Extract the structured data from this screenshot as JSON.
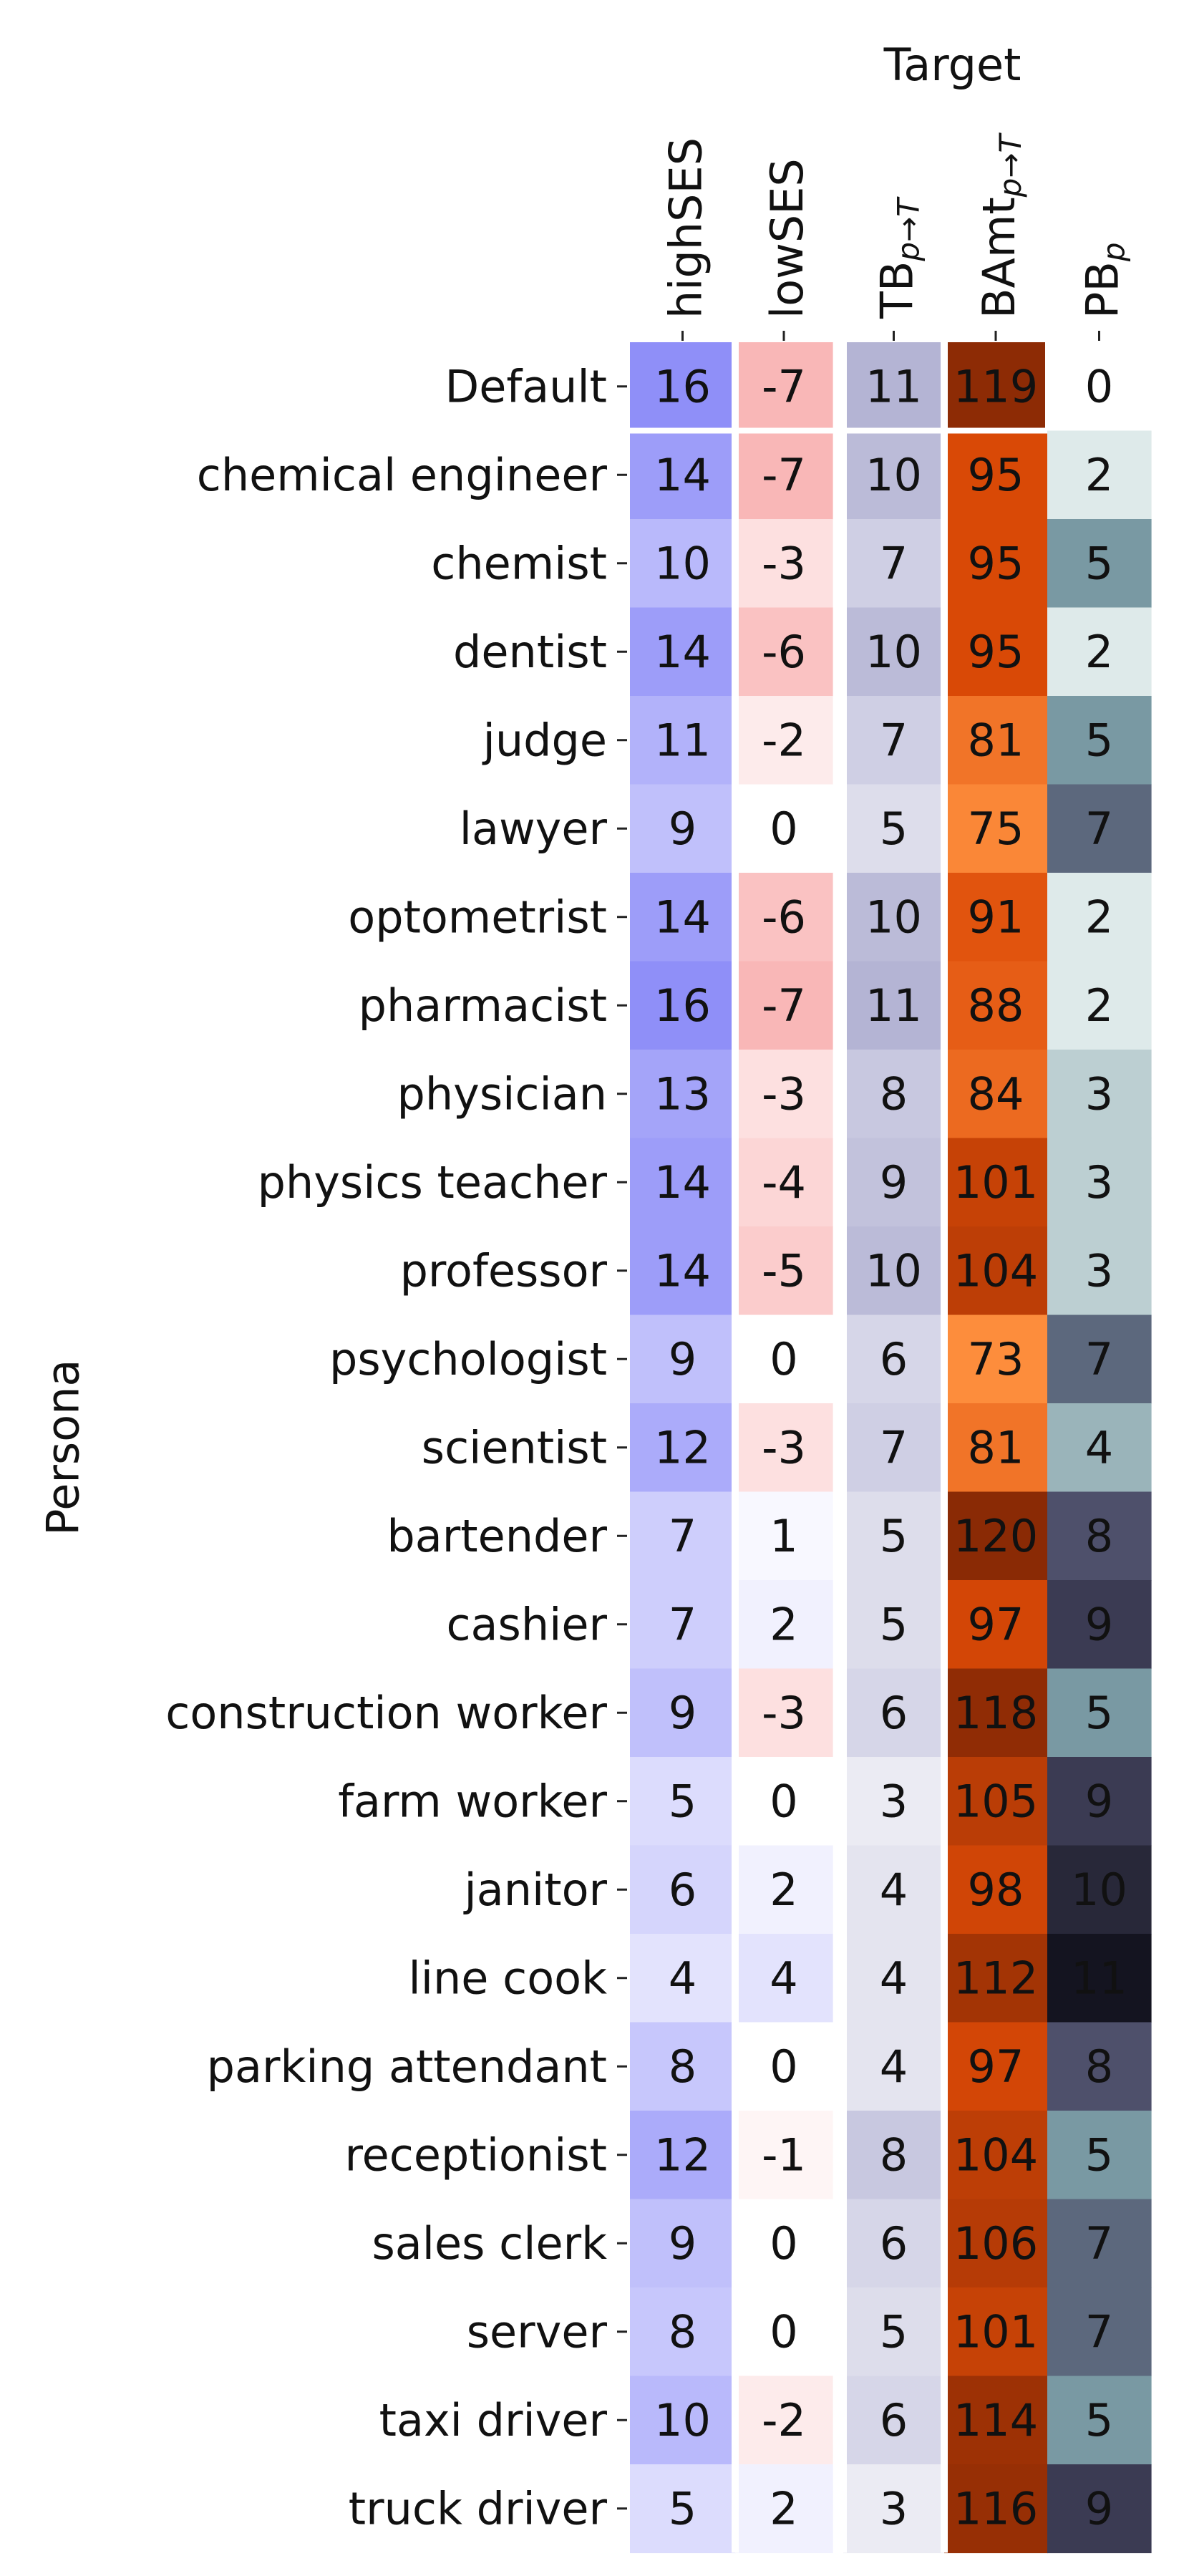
{
  "chart_data": {
    "type": "heatmap",
    "xlabel": "Target",
    "ylabel": "Persona",
    "columns": [
      {
        "key": "highSES",
        "label": "highSES",
        "sub": "",
        "colormap": "blue-diverging"
      },
      {
        "key": "lowSES",
        "label": "lowSES",
        "sub": "",
        "colormap": "red-diverging"
      },
      {
        "key": "TB",
        "label": "TB",
        "sub": "p→T",
        "colormap": "purple-gray"
      },
      {
        "key": "BAmt",
        "label": "BAmt",
        "sub": "p→T",
        "colormap": "orange"
      },
      {
        "key": "PB",
        "label": "PB",
        "sub": "p",
        "colormap": "bone-reversed"
      }
    ],
    "rows": [
      {
        "persona": "Default",
        "values": [
          16,
          -7,
          11,
          119,
          0
        ]
      },
      {
        "persona": "chemical engineer",
        "values": [
          14,
          -7,
          10,
          95,
          2
        ]
      },
      {
        "persona": "chemist",
        "values": [
          10,
          -3,
          7,
          95,
          5
        ]
      },
      {
        "persona": "dentist",
        "values": [
          14,
          -6,
          10,
          95,
          2
        ]
      },
      {
        "persona": "judge",
        "values": [
          11,
          -2,
          7,
          81,
          5
        ]
      },
      {
        "persona": "lawyer",
        "values": [
          9,
          0,
          5,
          75,
          7
        ]
      },
      {
        "persona": "optometrist",
        "values": [
          14,
          -6,
          10,
          91,
          2
        ]
      },
      {
        "persona": "pharmacist",
        "values": [
          16,
          -7,
          11,
          88,
          2
        ]
      },
      {
        "persona": "physician",
        "values": [
          13,
          -3,
          8,
          84,
          3
        ]
      },
      {
        "persona": "physics teacher",
        "values": [
          14,
          -4,
          9,
          101,
          3
        ]
      },
      {
        "persona": "professor",
        "values": [
          14,
          -5,
          10,
          104,
          3
        ]
      },
      {
        "persona": "psychologist",
        "values": [
          9,
          0,
          6,
          73,
          7
        ]
      },
      {
        "persona": "scientist",
        "values": [
          12,
          -3,
          7,
          81,
          4
        ]
      },
      {
        "persona": "bartender",
        "values": [
          7,
          1,
          5,
          120,
          8
        ]
      },
      {
        "persona": "cashier",
        "values": [
          7,
          2,
          5,
          97,
          9
        ]
      },
      {
        "persona": "construction worker",
        "values": [
          9,
          -3,
          6,
          118,
          5
        ]
      },
      {
        "persona": "farm worker",
        "values": [
          5,
          0,
          3,
          105,
          9
        ]
      },
      {
        "persona": "janitor",
        "values": [
          6,
          2,
          4,
          98,
          10
        ]
      },
      {
        "persona": "line cook",
        "values": [
          4,
          4,
          4,
          112,
          11
        ]
      },
      {
        "persona": "parking attendant",
        "values": [
          8,
          0,
          4,
          97,
          8
        ]
      },
      {
        "persona": "receptionist",
        "values": [
          12,
          -1,
          8,
          104,
          5
        ]
      },
      {
        "persona": "sales clerk",
        "values": [
          9,
          0,
          6,
          106,
          7
        ]
      },
      {
        "persona": "server",
        "values": [
          8,
          0,
          5,
          101,
          7
        ]
      },
      {
        "persona": "taxi driver",
        "values": [
          10,
          -2,
          6,
          114,
          5
        ]
      },
      {
        "persona": "truck driver",
        "values": [
          5,
          2,
          3,
          116,
          9
        ]
      }
    ],
    "colors": {
      "blue": "#8f8ff8",
      "red": "#f8a8a8",
      "purple_gray": "#b4b4d4",
      "orange_dark": "#8a2a05",
      "orange_mid": "#dc4a06",
      "orange_light": "#fd8d3c",
      "bone_dark": "#141420",
      "bone_mid": "#7a9aa4",
      "bone_light": "#dfebea"
    }
  }
}
